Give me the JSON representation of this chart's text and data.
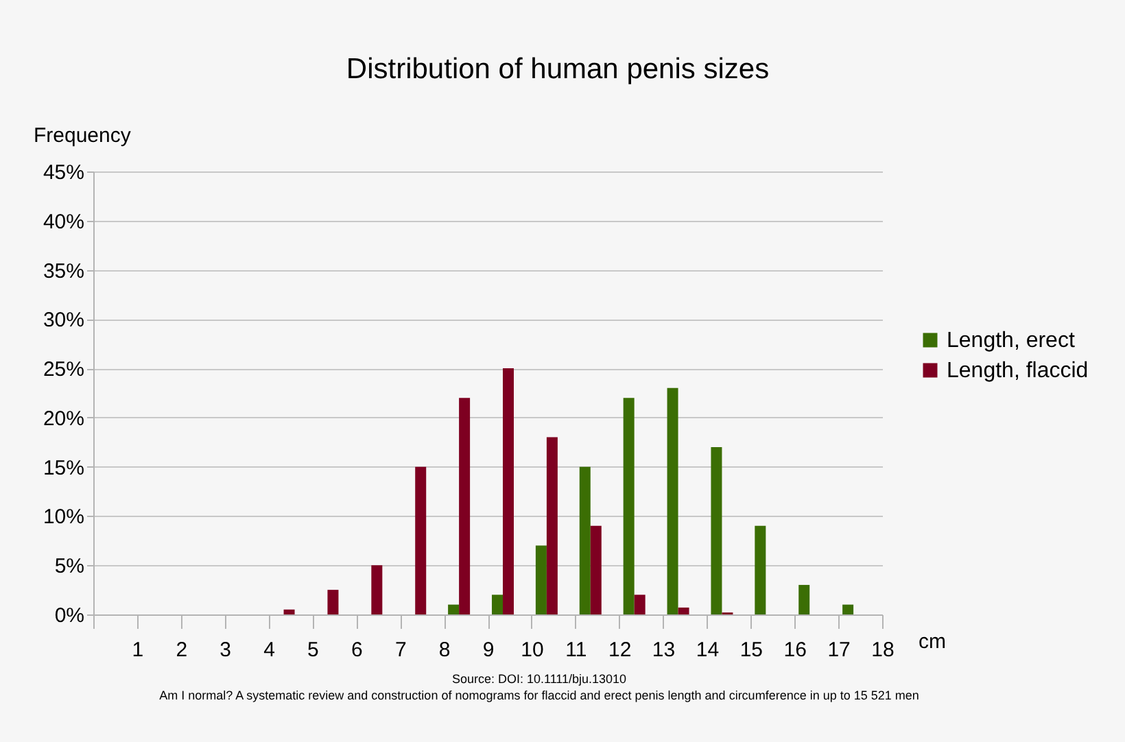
{
  "chart_data": {
    "type": "histogram",
    "title": "Distribution of human penis sizes",
    "xlabel": "cm",
    "ylabel": "Frequency",
    "bins": [
      0,
      1,
      2,
      3,
      4,
      5,
      6,
      7,
      8,
      9,
      10,
      11,
      12,
      13,
      14,
      15,
      16,
      17,
      18
    ],
    "series": [
      {
        "name": "Length, erect",
        "color": "#3b6e04",
        "values": [
          null,
          null,
          null,
          null,
          null,
          null,
          null,
          null,
          1,
          2,
          7,
          15,
          22,
          23,
          17,
          9,
          3,
          1
        ]
      },
      {
        "name": "Length, flaccid",
        "color": "#7e0021",
        "values": [
          null,
          null,
          null,
          null,
          0.5,
          2.5,
          5,
          15,
          22,
          25,
          18,
          9,
          2,
          0.7,
          0.2,
          null,
          null,
          null
        ]
      }
    ],
    "xlim": [
      0,
      18
    ],
    "xticks": [
      1,
      2,
      3,
      4,
      5,
      6,
      7,
      8,
      9,
      10,
      11,
      12,
      13,
      14,
      15,
      16,
      17,
      18
    ],
    "ylim": [
      0,
      45
    ],
    "yticks": [
      {
        "value": 0,
        "label": "0%"
      },
      {
        "value": 5,
        "label": "5%"
      },
      {
        "value": 10,
        "label": "10%"
      },
      {
        "value": 15,
        "label": "15%"
      },
      {
        "value": 20,
        "label": "20%"
      },
      {
        "value": 25,
        "label": "25%"
      },
      {
        "value": 30,
        "label": "30%"
      },
      {
        "value": 35,
        "label": "35%"
      },
      {
        "value": 40,
        "label": "40%"
      },
      {
        "value": 45,
        "label": "45%"
      }
    ],
    "grid": "y",
    "legend": "right",
    "annotations": [
      "Source: DOI: 10.1111/bju.13010",
      "Am I normal? A systematic review and construction of nomograms for flaccid and erect penis length and circumference in up to 15 521 men"
    ]
  }
}
